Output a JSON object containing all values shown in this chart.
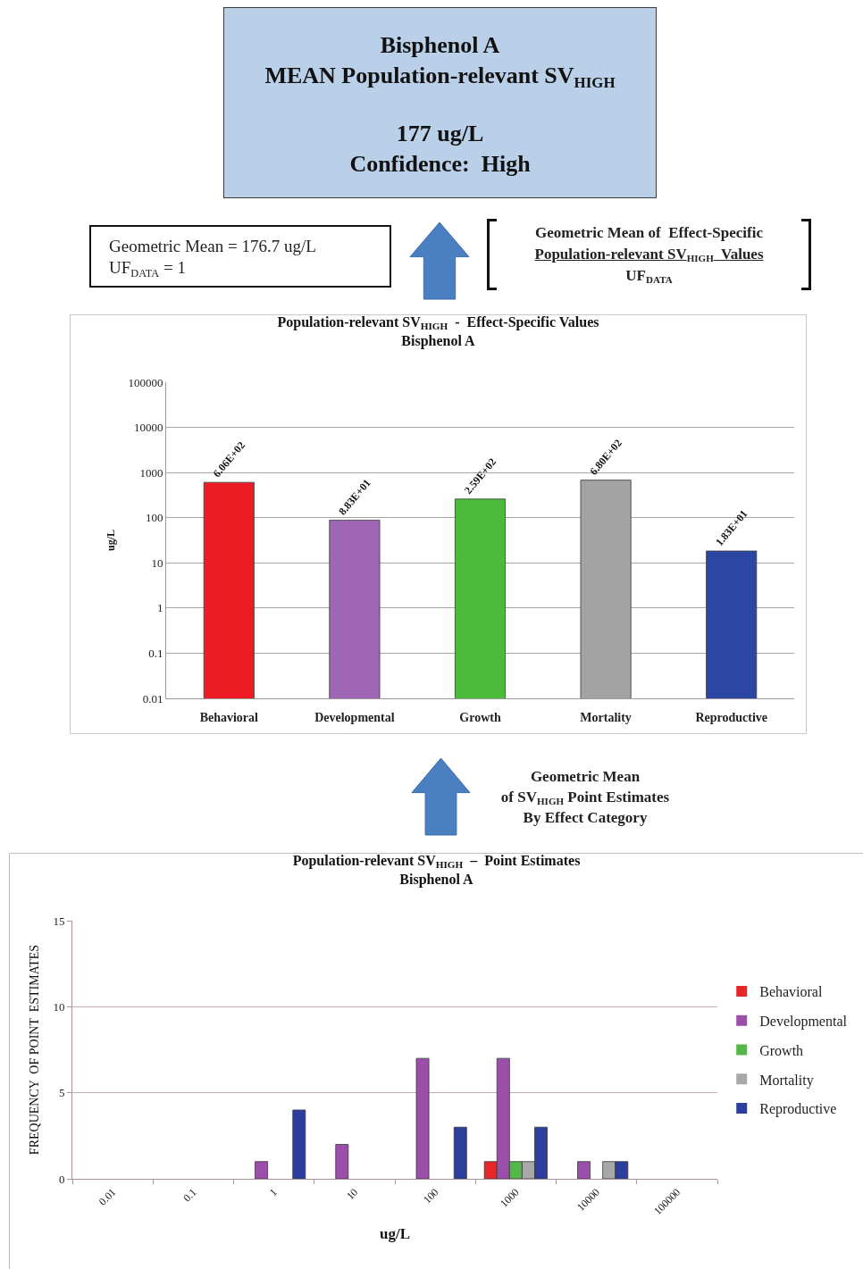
{
  "chart_data": [
    {
      "type": "other",
      "title": "Bisphenol A",
      "subtitle": "MEAN Population-relevant SV$_{HIGH}$",
      "annotations": [
        "177 ug/L\nConfidence:  High",
        "Geometric Mean = 176.7 ug/L\nUF$_{DATA}$ = 1",
        "Geometric Mean of  Effect-Specific\nPopulation-relevant SV$_{HIGH}$  Values\nUF$_{DATA}$"
      ]
    },
    {
      "type": "bar",
      "title": "Population-relevant SV$_{HIGH}$  -  Effect-Specific Values\nBisphenol A",
      "ylabel": "ug/L",
      "categories": [
        "Behavioral",
        "Developmental",
        "Growth",
        "Mortality",
        "Reproductive"
      ],
      "values": [
        606,
        88.3,
        259,
        680,
        18.3
      ],
      "value_labels": [
        "6.06E+02",
        "8.83E+01",
        "2.59E+02",
        "6.80E+02",
        "1.83E+01"
      ],
      "colors": [
        "#ed1c24",
        "#9e66b5",
        "#4cbb3c",
        "#a3a3a3",
        "#2b46a3"
      ],
      "log": true,
      "ylim": [
        0.01,
        100000
      ],
      "yticks": [
        0.01,
        0.1,
        1,
        10,
        100,
        1000,
        10000,
        100000
      ],
      "grid": "y",
      "legend": false
    },
    {
      "type": "other",
      "annotations": [
        "Geometric Mean\nof SV$_{HIGH}$ Point Estimates\nBy Effect Category"
      ]
    },
    {
      "type": "bar",
      "title": "Population-relevant SV$_{HIGH}$  –  Point Estimates\nBisphenol A",
      "xlabel": "ug/L",
      "ylabel": "FREQUENCY  OF POINT  ESTIMATES",
      "categories": [
        "0.01",
        "0.1",
        "1",
        "10",
        "100",
        "1000",
        "10000",
        "100000"
      ],
      "series": [
        {
          "name": "Behavioral",
          "color": "#e8262a",
          "values": [
            0,
            0,
            0,
            0,
            0,
            1,
            0,
            0
          ]
        },
        {
          "name": "Developmental",
          "color": "#9b4faa",
          "values": [
            0,
            0,
            1,
            2,
            7,
            7,
            1,
            0
          ]
        },
        {
          "name": "Growth",
          "color": "#53b848",
          "values": [
            0,
            0,
            0,
            0,
            0,
            1,
            0,
            0
          ]
        },
        {
          "name": "Mortality",
          "color": "#a8a8a8",
          "values": [
            0,
            0,
            0,
            0,
            0,
            1,
            1,
            0
          ]
        },
        {
          "name": "Reproductive",
          "color": "#2c3f9e",
          "values": [
            0,
            0,
            4,
            0,
            3,
            3,
            1,
            0
          ]
        }
      ],
      "ylim": [
        0,
        15
      ],
      "yticks": [
        0,
        5,
        10,
        15
      ],
      "grid": "y",
      "legend": "right"
    }
  ]
}
